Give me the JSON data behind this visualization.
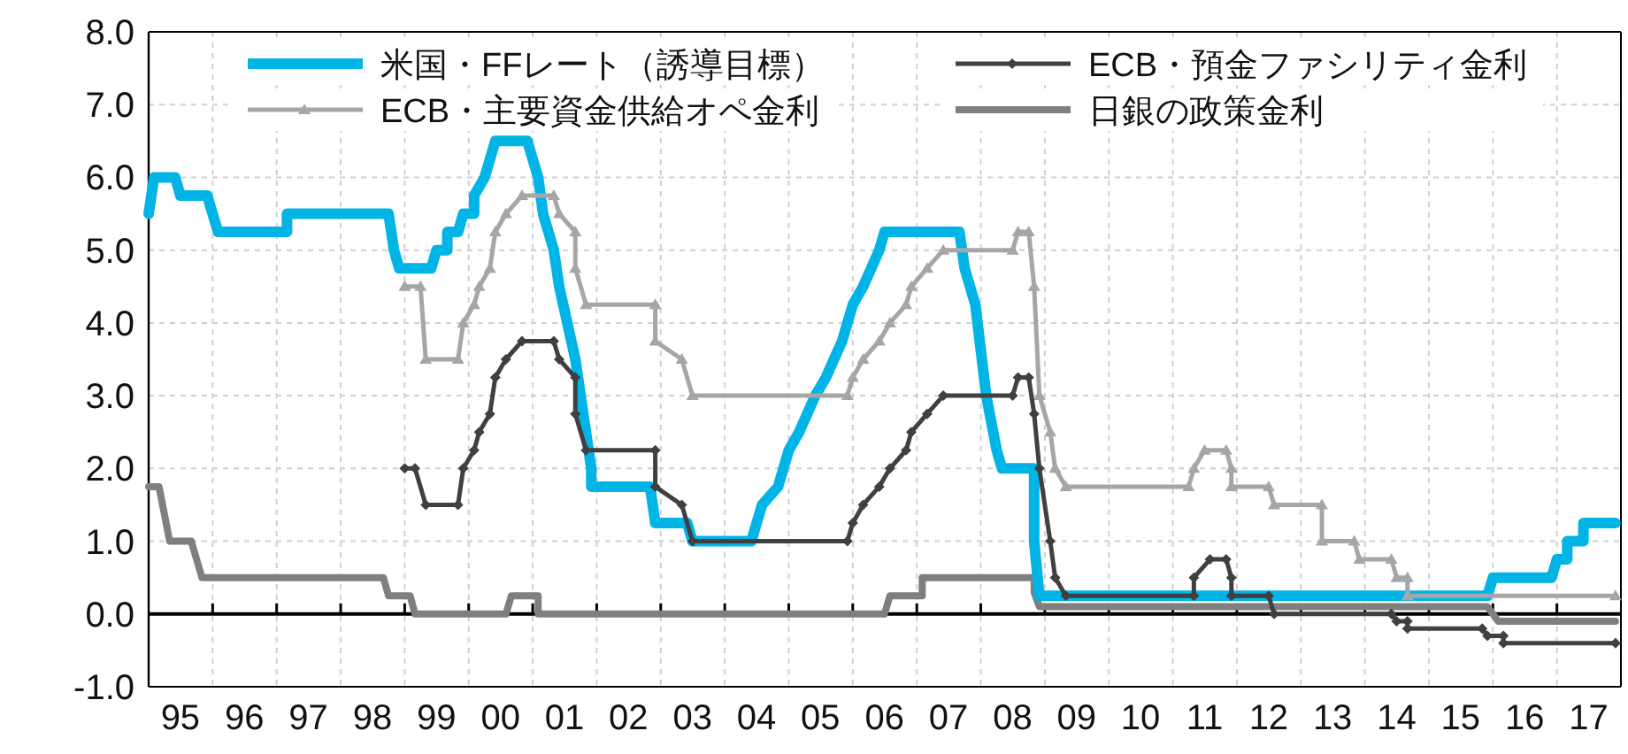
{
  "chart_data": {
    "type": "line",
    "xlim": [
      "1995-01",
      "2018-01"
    ],
    "ylim": [
      -1,
      8
    ],
    "xticks": [
      {
        "value": "1995-07",
        "label": "95"
      },
      {
        "value": "1996-07",
        "label": "96"
      },
      {
        "value": "1997-07",
        "label": "97"
      },
      {
        "value": "1998-07",
        "label": "98"
      },
      {
        "value": "1999-07",
        "label": "99"
      },
      {
        "value": "2000-07",
        "label": "00"
      },
      {
        "value": "2001-07",
        "label": "01"
      },
      {
        "value": "2002-07",
        "label": "02"
      },
      {
        "value": "2003-07",
        "label": "03"
      },
      {
        "value": "2004-07",
        "label": "04"
      },
      {
        "value": "2005-07",
        "label": "05"
      },
      {
        "value": "2006-07",
        "label": "06"
      },
      {
        "value": "2007-07",
        "label": "07"
      },
      {
        "value": "2008-07",
        "label": "08"
      },
      {
        "value": "2009-07",
        "label": "09"
      },
      {
        "value": "2010-07",
        "label": "10"
      },
      {
        "value": "2011-07",
        "label": "11"
      },
      {
        "value": "2012-07",
        "label": "12"
      },
      {
        "value": "2013-07",
        "label": "13"
      },
      {
        "value": "2014-07",
        "label": "14"
      },
      {
        "value": "2015-07",
        "label": "15"
      },
      {
        "value": "2016-07",
        "label": "16"
      },
      {
        "value": "2017-07",
        "label": "17"
      },
      {
        "value": "1996-01",
        "label": null
      },
      {
        "value": "1997-01",
        "label": null
      },
      {
        "value": "1998-01",
        "label": null
      },
      {
        "value": "1999-01",
        "label": null
      },
      {
        "value": "2000-01",
        "label": null
      },
      {
        "value": "2001-01",
        "label": null
      },
      {
        "value": "2002-01",
        "label": null
      },
      {
        "value": "2003-01",
        "label": null
      },
      {
        "value": "2004-01",
        "label": null
      },
      {
        "value": "2005-01",
        "label": null
      },
      {
        "value": "2006-01",
        "label": null
      },
      {
        "value": "2007-01",
        "label": null
      },
      {
        "value": "2008-01",
        "label": null
      },
      {
        "value": "2009-01",
        "label": null
      },
      {
        "value": "2010-01",
        "label": null
      },
      {
        "value": "2011-01",
        "label": null
      },
      {
        "value": "2012-01",
        "label": null
      },
      {
        "value": "2013-01",
        "label": null
      },
      {
        "value": "2014-01",
        "label": null
      },
      {
        "value": "2015-01",
        "label": null
      },
      {
        "value": "2016-01",
        "label": null
      },
      {
        "value": "2017-01",
        "label": null
      }
    ],
    "yticks": [
      {
        "value": -1,
        "label": "-1.0"
      },
      {
        "value": 0,
        "label": "0.0"
      },
      {
        "value": 1,
        "label": "1.0"
      },
      {
        "value": 2,
        "label": "2.0"
      },
      {
        "value": 3,
        "label": "3.0"
      },
      {
        "value": 4,
        "label": "4.0"
      },
      {
        "value": 5,
        "label": "5.0"
      },
      {
        "value": 6,
        "label": "6.0"
      },
      {
        "value": 7,
        "label": "7.0"
      },
      {
        "value": 8,
        "label": "8.0"
      }
    ],
    "grid": true,
    "legend": "top",
    "marker": "none",
    "line_style": "solid",
    "ref_lines": [
      {
        "axis": "y",
        "value": 0,
        "color": "#000000"
      }
    ],
    "series": [
      {
        "name": "米国・FFレート（誘導目標）",
        "color": "#00b4e6",
        "x": [
          "1995-01",
          "1995-02",
          "1995-06",
          "1995-07",
          "1995-12",
          "1996-02",
          "1997-03",
          "1997-03",
          "1998-10",
          "1998-11",
          "1998-12",
          "1999-06",
          "1999-07",
          "1999-09",
          "1999-09",
          "1999-11",
          "1999-12",
          "2000-02",
          "2000-02",
          "2000-04",
          "2000-06",
          "2000-12",
          "2001-02",
          "2001-03",
          "2001-05",
          "2001-06",
          "2001-09",
          "2001-12",
          "2001-12",
          "2002-11",
          "2002-12",
          "2003-06",
          "2003-07",
          "2004-06",
          "2004-08",
          "2004-11",
          "2005-01",
          "2005-03",
          "2005-06",
          "2005-08",
          "2005-11",
          "2006-01",
          "2006-03",
          "2006-06",
          "2006-07",
          "2007-09",
          "2007-10",
          "2007-12",
          "2008-02",
          "2008-04",
          "2008-05",
          "2008-11",
          "2008-11",
          "2008-12",
          "2015-12",
          "2016-01",
          "2016-12",
          "2017-01",
          "2017-03",
          "2017-03",
          "2017-06",
          "2017-06",
          "2017-12"
        ],
        "values": [
          5.5,
          6.0,
          6.0,
          5.75,
          5.75,
          5.25,
          5.25,
          5.5,
          5.5,
          5.0,
          4.75,
          4.75,
          5.0,
          5.0,
          5.25,
          5.25,
          5.5,
          5.5,
          5.75,
          6.0,
          6.5,
          6.5,
          6.0,
          5.5,
          5.0,
          4.5,
          3.5,
          2.0,
          1.75,
          1.75,
          1.25,
          1.25,
          1.0,
          1.0,
          1.5,
          1.75,
          2.25,
          2.5,
          3.0,
          3.25,
          3.75,
          4.25,
          4.5,
          5.0,
          5.25,
          5.25,
          4.75,
          4.25,
          3.0,
          2.25,
          2.0,
          2.0,
          1.0,
          0.25,
          0.25,
          0.5,
          0.5,
          0.75,
          0.75,
          1.0,
          1.0,
          1.25,
          1.25
        ]
      },
      {
        "name": "ECB・預金ファシリティ金利",
        "color": "#404040",
        "marker": "diamond",
        "x": [
          "1999-01",
          "1999-03",
          "1999-05",
          "1999-11",
          "1999-12",
          "2000-02",
          "2000-03",
          "2000-05",
          "2000-06",
          "2000-08",
          "2000-11",
          "2001-05",
          "2001-06",
          "2001-09",
          "2001-09",
          "2001-11",
          "2002-12",
          "2002-12",
          "2003-05",
          "2003-07",
          "2005-12",
          "2006-01",
          "2006-03",
          "2006-06",
          "2006-08",
          "2006-11",
          "2006-12",
          "2007-03",
          "2007-06",
          "2008-07",
          "2008-08",
          "2008-10",
          "2008-11",
          "2008-12",
          "2009-02",
          "2009-03",
          "2009-05",
          "2011-05",
          "2011-05",
          "2011-08",
          "2011-11",
          "2011-12",
          "2011-12",
          "2012-07",
          "2012-08",
          "2014-06",
          "2014-07",
          "2014-09",
          "2014-09",
          "2015-11",
          "2015-12",
          "2016-03",
          "2016-03",
          "2017-12"
        ],
        "values": [
          2.0,
          2.0,
          1.5,
          1.5,
          2.0,
          2.25,
          2.5,
          2.75,
          3.25,
          3.5,
          3.75,
          3.75,
          3.5,
          3.25,
          2.75,
          2.25,
          2.25,
          1.75,
          1.5,
          1.0,
          1.0,
          1.25,
          1.5,
          1.75,
          2.0,
          2.25,
          2.5,
          2.75,
          3.0,
          3.0,
          3.25,
          3.25,
          2.75,
          2.0,
          1.0,
          0.5,
          0.25,
          0.25,
          0.5,
          0.75,
          0.75,
          0.5,
          0.25,
          0.25,
          0.0,
          0.0,
          -0.1,
          -0.1,
          -0.2,
          -0.2,
          -0.3,
          -0.3,
          -0.4,
          -0.4
        ]
      },
      {
        "name": "ECB・主要資金供給オペ金利",
        "color": "#a6a6a6",
        "marker": "triangle",
        "x": [
          "1999-01",
          "1999-04",
          "1999-05",
          "1999-11",
          "1999-12",
          "2000-02",
          "2000-03",
          "2000-05",
          "2000-06",
          "2000-08",
          "2000-11",
          "2001-05",
          "2001-06",
          "2001-09",
          "2001-09",
          "2001-11",
          "2002-12",
          "2002-12",
          "2003-05",
          "2003-07",
          "2005-12",
          "2006-01",
          "2006-03",
          "2006-06",
          "2006-08",
          "2006-11",
          "2006-12",
          "2007-03",
          "2007-06",
          "2008-07",
          "2008-08",
          "2008-10",
          "2008-11",
          "2008-12",
          "2009-02",
          "2009-03",
          "2009-05",
          "2011-04",
          "2011-05",
          "2011-07",
          "2011-11",
          "2011-12",
          "2011-12",
          "2012-07",
          "2012-08",
          "2013-05",
          "2013-05",
          "2013-11",
          "2013-12",
          "2014-06",
          "2014-07",
          "2014-09",
          "2014-09",
          "2017-12"
        ],
        "values": [
          4.5,
          4.5,
          3.5,
          3.5,
          4.0,
          4.25,
          4.5,
          4.75,
          5.25,
          5.5,
          5.75,
          5.75,
          5.5,
          5.25,
          4.75,
          4.25,
          4.25,
          3.75,
          3.5,
          3.0,
          3.0,
          3.25,
          3.5,
          3.75,
          4.0,
          4.25,
          4.5,
          4.75,
          5.0,
          5.0,
          5.25,
          5.25,
          4.5,
          3.0,
          2.5,
          2.0,
          1.75,
          1.75,
          2.0,
          2.25,
          2.25,
          2.0,
          1.75,
          1.75,
          1.5,
          1.5,
          1.0,
          1.0,
          0.75,
          0.75,
          0.5,
          0.5,
          0.25,
          0.25
        ]
      },
      {
        "name": "日銀の政策金利",
        "color": "#7f7f7f",
        "x": [
          "1995-01",
          "1995-03",
          "1995-05",
          "1995-09",
          "1995-11",
          "1998-09",
          "1998-10",
          "1999-02",
          "1999-03",
          "2000-08",
          "2000-09",
          "2001-02",
          "2001-02",
          "2006-07",
          "2006-08",
          "2007-02",
          "2007-02",
          "2008-11",
          "2008-11",
          "2008-12",
          "2015-12",
          "2016-02",
          "2017-12"
        ],
        "values": [
          1.75,
          1.75,
          1.0,
          1.0,
          0.5,
          0.5,
          0.25,
          0.25,
          0.0,
          0.0,
          0.25,
          0.25,
          0.0,
          0.0,
          0.25,
          0.25,
          0.5,
          0.5,
          0.3,
          0.1,
          0.1,
          -0.1,
          -0.1
        ]
      }
    ]
  }
}
